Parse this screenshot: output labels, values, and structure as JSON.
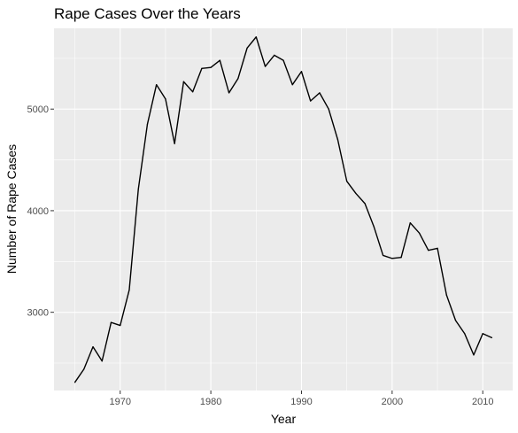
{
  "chart_data": {
    "type": "line",
    "title": "Rape Cases Over the Years",
    "xlabel": "Year",
    "ylabel": "Number of Rape Cases",
    "xlim": [
      1962.7,
      2013.3
    ],
    "ylim": [
      2230,
      5795
    ],
    "x_ticks": [
      1970,
      1980,
      1990,
      2000,
      2010
    ],
    "y_ticks": [
      3000,
      4000,
      5000
    ],
    "grid": true,
    "background": "#ebebeb",
    "grid_major_color": "#ffffff",
    "line_color": "#000000",
    "series": [
      {
        "x": [
          1965,
          1966,
          1967,
          1968,
          1969,
          1970,
          1971,
          1972,
          1973,
          1974,
          1975,
          1976,
          1977,
          1978,
          1979,
          1980,
          1981,
          1982,
          1983,
          1984,
          1985,
          1986,
          1987,
          1988,
          1989,
          1990,
          1991,
          1992,
          1993,
          1994,
          1995,
          1996,
          1997,
          1998,
          1999,
          2000,
          2001,
          2002,
          2003,
          2004,
          2005,
          2006,
          2007,
          2008,
          2009,
          2010,
          2011
        ],
        "values": [
          2310,
          2440,
          2660,
          2520,
          2900,
          2870,
          3220,
          4210,
          4850,
          5240,
          5100,
          4660,
          5270,
          5170,
          5400,
          5410,
          5480,
          5160,
          5300,
          5600,
          5710,
          5420,
          5530,
          5480,
          5240,
          5370,
          5080,
          5160,
          5000,
          4700,
          4290,
          4170,
          4070,
          3840,
          3560,
          3530,
          3540,
          3880,
          3780,
          3610,
          3630,
          3170,
          2920,
          2790,
          2580,
          2790,
          2750
        ]
      }
    ]
  }
}
